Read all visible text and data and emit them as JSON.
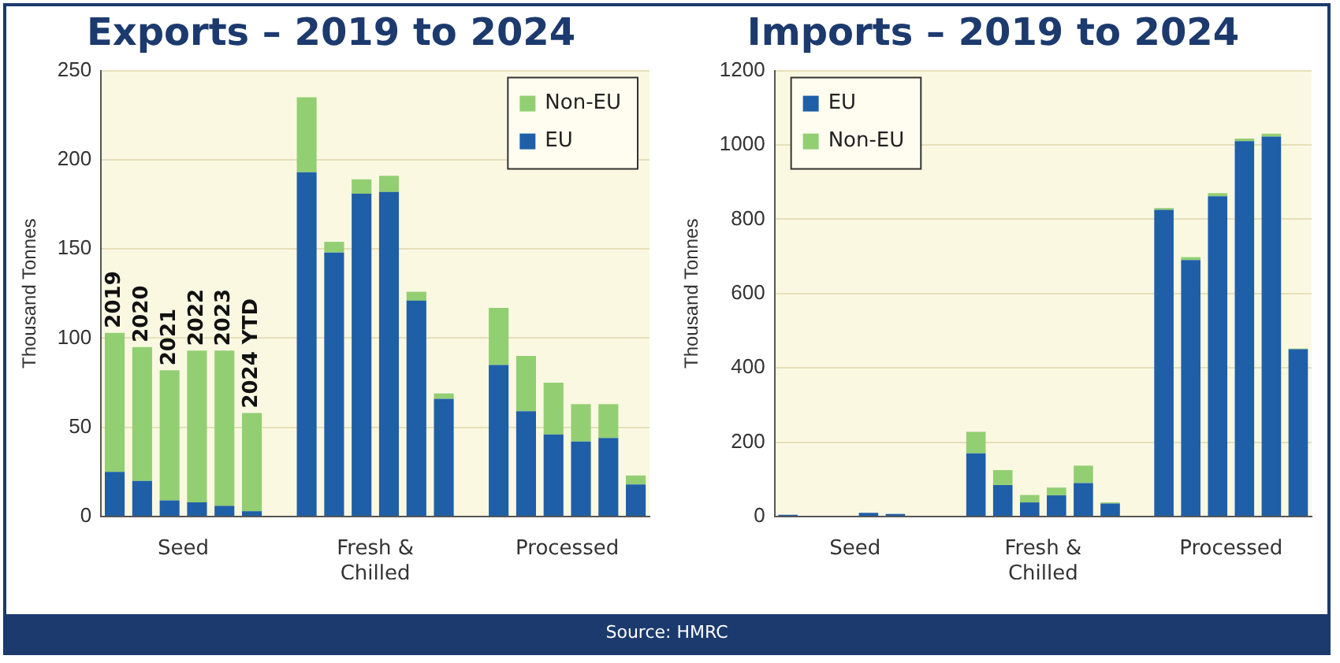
{
  "chart_data": [
    {
      "type": "bar",
      "title": "Exports – 2019 to 2024",
      "ylabel": "Thousand Tonnes",
      "stacked": true,
      "legend": "top right",
      "grid": "y",
      "categories": [
        "2019",
        "2020",
        "2021",
        "2022",
        "2023",
        "2024 YTD",
        null,
        null,
        null,
        null,
        null,
        null,
        null,
        null,
        null,
        null,
        null,
        null,
        null,
        null
      ],
      "series": [
        {
          "name": "EU",
          "color": "#1f5fa8",
          "values": [
            25,
            20,
            9,
            8,
            6,
            3,
            null,
            193,
            148,
            181,
            182,
            121,
            66,
            null,
            85,
            59,
            46,
            42,
            44,
            18
          ]
        },
        {
          "name": "Non-EU",
          "color": "#92cf72",
          "values": [
            78,
            75,
            73,
            85,
            87,
            55,
            null,
            42,
            6,
            8,
            9,
            5,
            3,
            null,
            32,
            31,
            29,
            21,
            19,
            5
          ]
        }
      ],
      "ylim": [
        0,
        250
      ],
      "yticks": [
        0,
        50,
        100,
        150,
        200,
        250
      ],
      "annotations": [
        "Seed",
        "Fresh & Chilled",
        "Processed"
      ]
    },
    {
      "type": "bar",
      "title": "Imports – 2019 to 2024",
      "ylabel": "Thousand Tonnes",
      "stacked": true,
      "legend": "top left",
      "grid": "y",
      "categories": [
        null,
        null,
        null,
        null,
        null,
        null,
        null,
        null,
        null,
        null,
        null,
        null,
        null,
        null,
        null,
        null,
        null,
        null,
        null,
        null
      ],
      "series": [
        {
          "name": "EU",
          "color": "#1f5fa8",
          "values": [
            5,
            2,
            2,
            10,
            7,
            2,
            null,
            170,
            85,
            38,
            57,
            90,
            35,
            null,
            825,
            690,
            862,
            1010,
            1022,
            450
          ]
        },
        {
          "name": "Non-EU",
          "color": "#92cf72",
          "values": [
            0,
            0,
            0,
            0,
            0,
            0,
            null,
            58,
            40,
            20,
            21,
            47,
            3,
            null,
            5,
            8,
            8,
            7,
            8,
            2
          ]
        }
      ],
      "ylim": [
        0,
        1200
      ],
      "yticks": [
        0,
        200,
        400,
        600,
        800,
        1000,
        1200
      ],
      "annotations": [
        "Seed",
        "Fresh & Chilled",
        "Processed",
        "Source: HMRC"
      ]
    }
  ]
}
